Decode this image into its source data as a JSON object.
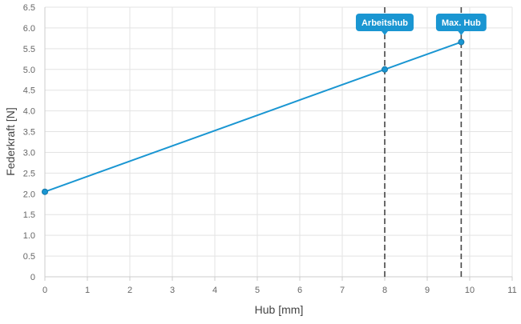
{
  "chart_data": {
    "type": "line",
    "xlabel": "Hub [mm]",
    "ylabel": "Federkraft [N]",
    "xlim": [
      0,
      11
    ],
    "ylim": [
      0,
      6.5
    ],
    "x_ticks": [
      0,
      1,
      2,
      3,
      4,
      5,
      6,
      7,
      8,
      9,
      10,
      11
    ],
    "y_ticks": [
      "0",
      "0.5",
      "1.0",
      "1.5",
      "2.0",
      "2.5",
      "3.0",
      "3.5",
      "4.0",
      "4.5",
      "5.0",
      "5.5",
      "6.0",
      "6.5"
    ],
    "grid": true,
    "series": [
      {
        "color": "#1a96d2",
        "points": [
          {
            "x": 0,
            "y": 2.05
          },
          {
            "x": 8.0,
            "y": 5.0
          },
          {
            "x": 9.8,
            "y": 5.66
          }
        ]
      }
    ],
    "annotations": [
      {
        "label": "Arbeitshub",
        "x": 8.0,
        "color": "#1a96d2"
      },
      {
        "label": "Max. Hub",
        "x": 9.8,
        "color": "#1a96d2"
      }
    ]
  }
}
